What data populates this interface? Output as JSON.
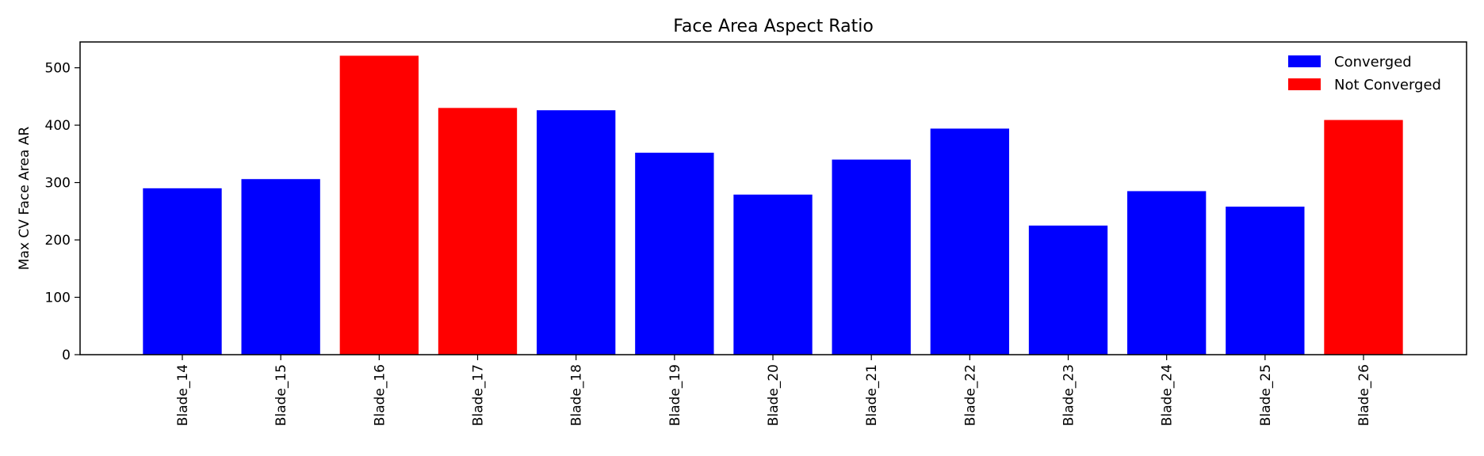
{
  "chart_data": {
    "type": "bar",
    "title": "Face Area Aspect Ratio",
    "xlabel": "",
    "ylabel": "Max CV Face Area AR",
    "ylim": [
      0,
      545
    ],
    "yticks": [
      0,
      100,
      200,
      300,
      400,
      500
    ],
    "categories": [
      "Blade_14",
      "Blade_15",
      "Blade_16",
      "Blade_17",
      "Blade_18",
      "Blade_19",
      "Blade_20",
      "Blade_21",
      "Blade_22",
      "Blade_23",
      "Blade_24",
      "Blade_25",
      "Blade_26"
    ],
    "values": [
      290,
      306,
      521,
      430,
      426,
      352,
      279,
      340,
      394,
      225,
      285,
      258,
      409
    ],
    "status": [
      "Converged",
      "Converged",
      "Not Converged",
      "Not Converged",
      "Converged",
      "Converged",
      "Converged",
      "Converged",
      "Converged",
      "Converged",
      "Converged",
      "Converged",
      "Not Converged"
    ],
    "legend": {
      "placement": "top-right",
      "entries": [
        {
          "label": "Converged",
          "color": "#0000ff"
        },
        {
          "label": "Not Converged",
          "color": "#ff0000"
        }
      ]
    },
    "grid": false
  }
}
